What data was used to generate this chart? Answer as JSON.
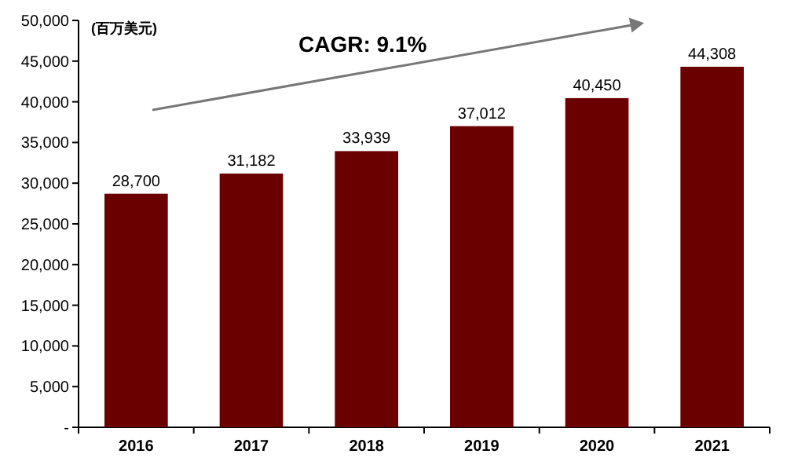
{
  "chart_data": {
    "type": "bar",
    "ylabel": "(百万美元)",
    "categories": [
      "2016",
      "2017",
      "2018",
      "2019",
      "2020",
      "2021"
    ],
    "values": [
      28700,
      31182,
      33939,
      37012,
      40450,
      44308
    ],
    "color": "#6b0000",
    "ylim": [
      0,
      50000
    ],
    "yticks": [
      {
        "value": 0,
        "label": "-"
      },
      {
        "value": 5000,
        "label": "5,000"
      },
      {
        "value": 10000,
        "label": "10,000"
      },
      {
        "value": 15000,
        "label": "15,000"
      },
      {
        "value": 20000,
        "label": "20,000"
      },
      {
        "value": 25000,
        "label": "25,000"
      },
      {
        "value": 30000,
        "label": "30,000"
      },
      {
        "value": 35000,
        "label": "35,000"
      },
      {
        "value": 40000,
        "label": "40,000"
      },
      {
        "value": 45000,
        "label": "45,000"
      },
      {
        "value": 50000,
        "label": "50,000"
      }
    ],
    "value_labels": [
      "28,700",
      "31,182",
      "33,939",
      "37,012",
      "40,450",
      "44,308"
    ],
    "annotations": [
      "CAGR: 9.1%"
    ],
    "grid": false
  }
}
